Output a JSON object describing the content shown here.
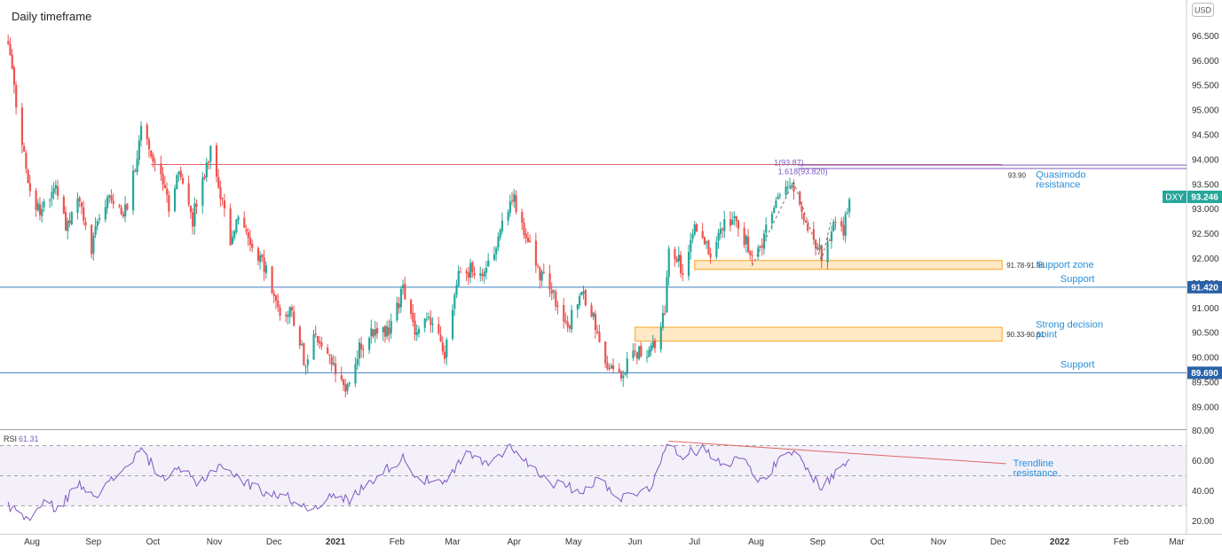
{
  "header": {
    "timeframe": "Daily timeframe",
    "currency_button": "USD"
  },
  "chart_data": [
    {
      "type": "candlestick",
      "title": "Daily timeframe",
      "symbol": "DXY",
      "last_price": "93.246",
      "currency": "USD",
      "ylim": [
        88.6,
        96.9
      ],
      "y_ticks": [
        "96.500",
        "96.000",
        "95.500",
        "95.000",
        "94.500",
        "94.000",
        "93.500",
        "93.000",
        "92.500",
        "92.000",
        "91.500",
        "91.000",
        "90.500",
        "90.000",
        "89.500",
        "89.000"
      ],
      "x_ticks": [
        "Aug",
        "Sep",
        "Oct",
        "Nov",
        "Dec",
        "2021",
        "Feb",
        "Mar",
        "Apr",
        "May",
        "Jun",
        "Jul",
        "Aug",
        "Sep",
        "Oct",
        "Nov",
        "Dec",
        "2022",
        "Feb",
        "Mar"
      ],
      "up_color": "#26a69a",
      "down_color": "#ef5350",
      "price_anchors": [
        [
          "2020-07-20",
          96.4
        ],
        [
          "2020-07-24",
          95.2
        ],
        [
          "2020-07-31",
          93.4
        ],
        [
          "2020-08-05",
          92.9
        ],
        [
          "2020-08-12",
          93.5
        ],
        [
          "2020-08-18",
          92.6
        ],
        [
          "2020-08-24",
          93.3
        ],
        [
          "2020-08-31",
          92.2
        ],
        [
          "2020-09-04",
          92.9
        ],
        [
          "2020-09-10",
          93.3
        ],
        [
          "2020-09-18",
          92.9
        ],
        [
          "2020-09-25",
          94.6
        ],
        [
          "2020-10-02",
          93.9
        ],
        [
          "2020-10-09",
          93.1
        ],
        [
          "2020-10-15",
          93.8
        ],
        [
          "2020-10-21",
          92.8
        ],
        [
          "2020-10-30",
          94.2
        ],
        [
          "2020-11-04",
          93.3
        ],
        [
          "2020-11-09",
          92.3
        ],
        [
          "2020-11-13",
          92.8
        ],
        [
          "2020-11-20",
          92.3
        ],
        [
          "2020-11-27",
          91.8
        ],
        [
          "2020-12-04",
          90.7
        ],
        [
          "2020-12-09",
          91.1
        ],
        [
          "2020-12-17",
          89.8
        ],
        [
          "2020-12-21",
          90.5
        ],
        [
          "2020-12-31",
          89.9
        ],
        [
          "2021-01-06",
          89.4
        ],
        [
          "2021-01-12",
          90.1
        ],
        [
          "2021-01-19",
          90.5
        ],
        [
          "2021-01-29",
          90.6
        ],
        [
          "2021-02-04",
          91.4
        ],
        [
          "2021-02-10",
          90.4
        ],
        [
          "2021-02-17",
          90.9
        ],
        [
          "2021-02-25",
          90.1
        ],
        [
          "2021-03-04",
          91.6
        ],
        [
          "2021-03-10",
          91.8
        ],
        [
          "2021-03-18",
          91.8
        ],
        [
          "2021-03-23",
          92.3
        ],
        [
          "2021-03-31",
          93.3
        ],
        [
          "2021-04-07",
          92.4
        ],
        [
          "2021-04-14",
          91.7
        ],
        [
          "2021-04-21",
          91.2
        ],
        [
          "2021-04-29",
          90.7
        ],
        [
          "2021-05-05",
          91.3
        ],
        [
          "2021-05-12",
          90.7
        ],
        [
          "2021-05-18",
          89.9
        ],
        [
          "2021-05-25",
          89.7
        ],
        [
          "2021-06-01",
          90.1
        ],
        [
          "2021-06-08",
          90.0
        ],
        [
          "2021-06-16",
          90.9
        ],
        [
          "2021-06-18",
          92.2
        ],
        [
          "2021-06-25",
          91.8
        ],
        [
          "2021-07-02",
          92.7
        ],
        [
          "2021-07-09",
          92.1
        ],
        [
          "2021-07-16",
          92.7
        ],
        [
          "2021-07-21",
          92.9
        ],
        [
          "2021-07-30",
          92.0
        ],
        [
          "2021-08-04",
          92.3
        ],
        [
          "2021-08-11",
          93.1
        ],
        [
          "2021-08-20",
          93.5
        ],
        [
          "2021-08-26",
          92.7
        ],
        [
          "2021-09-03",
          92.1
        ],
        [
          "2021-09-08",
          92.6
        ],
        [
          "2021-09-14",
          92.6
        ],
        [
          "2021-09-17",
          93.2
        ]
      ],
      "levels": [
        {
          "name": "Quasimodo resistance",
          "value": 93.9,
          "value_label": "93.90",
          "text": "Quasimodo resistance",
          "color": "#e06666"
        },
        {
          "name": "Fib 1.618",
          "label": "1.618(93.820)",
          "value": 93.82,
          "color": "#7e57c2"
        },
        {
          "name": "Fib 1",
          "label": "1(93.87)",
          "value": 93.87,
          "color": "#7e57c2"
        },
        {
          "name": "Support",
          "value": 91.42,
          "price_label": "91.420",
          "text": "Support",
          "color": "#3d7fc1"
        },
        {
          "name": "Support",
          "value": 89.69,
          "price_label": "89.690",
          "text": "Support",
          "color": "#3d7fc1"
        }
      ],
      "zones": [
        {
          "text": "Support zone",
          "range_label": "91.78-91.96",
          "low": 91.78,
          "high": 91.96,
          "from": "2021-07-01"
        },
        {
          "text": "Strong decision point",
          "range_label": "90.33-90.61",
          "low": 90.33,
          "high": 90.61,
          "from": "2021-06-01"
        }
      ]
    },
    {
      "type": "line",
      "title": "RSI",
      "series": [
        {
          "name": "RSI",
          "value": "61.31"
        }
      ],
      "ylim": [
        14,
        82
      ],
      "y_ticks": [
        "80.00",
        "60.00",
        "40.00",
        "20.00"
      ],
      "bands": {
        "upper": 70,
        "middle": 50,
        "lower": 30
      },
      "line_color": "#7e57c2",
      "rsi_anchors": [
        [
          "2020-07-20",
          30
        ],
        [
          "2020-07-31",
          21
        ],
        [
          "2020-08-07",
          32
        ],
        [
          "2020-08-14",
          28
        ],
        [
          "2020-08-24",
          44
        ],
        [
          "2020-09-04",
          38
        ],
        [
          "2020-09-14",
          52
        ],
        [
          "2020-09-25",
          67
        ],
        [
          "2020-10-06",
          48
        ],
        [
          "2020-10-16",
          54
        ],
        [
          "2020-10-23",
          44
        ],
        [
          "2020-11-04",
          58
        ],
        [
          "2020-11-13",
          48
        ],
        [
          "2020-11-25",
          40
        ],
        [
          "2020-12-09",
          35
        ],
        [
          "2020-12-18",
          28
        ],
        [
          "2020-12-31",
          36
        ],
        [
          "2021-01-08",
          34
        ],
        [
          "2021-01-20",
          48
        ],
        [
          "2021-02-04",
          62
        ],
        [
          "2021-02-12",
          48
        ],
        [
          "2021-02-25",
          44
        ],
        [
          "2021-03-08",
          65
        ],
        [
          "2021-03-18",
          58
        ],
        [
          "2021-03-31",
          70
        ],
        [
          "2021-04-09",
          56
        ],
        [
          "2021-04-21",
          45
        ],
        [
          "2021-05-05",
          40
        ],
        [
          "2021-05-14",
          48
        ],
        [
          "2021-05-25",
          35
        ],
        [
          "2021-06-09",
          43
        ],
        [
          "2021-06-18",
          72
        ],
        [
          "2021-06-25",
          64
        ],
        [
          "2021-07-06",
          68
        ],
        [
          "2021-07-16",
          58
        ],
        [
          "2021-07-26",
          62
        ],
        [
          "2021-08-04",
          45
        ],
        [
          "2021-08-11",
          58
        ],
        [
          "2021-08-20",
          66
        ],
        [
          "2021-08-26",
          56
        ],
        [
          "2021-09-03",
          42
        ],
        [
          "2021-09-10",
          52
        ],
        [
          "2021-09-17",
          61
        ]
      ],
      "trendline": {
        "text": "Trendline resistance",
        "color": "#e06666",
        "from": [
          "2021-06-18",
          73
        ],
        "to": [
          "2021-12-05",
          58
        ]
      }
    }
  ]
}
